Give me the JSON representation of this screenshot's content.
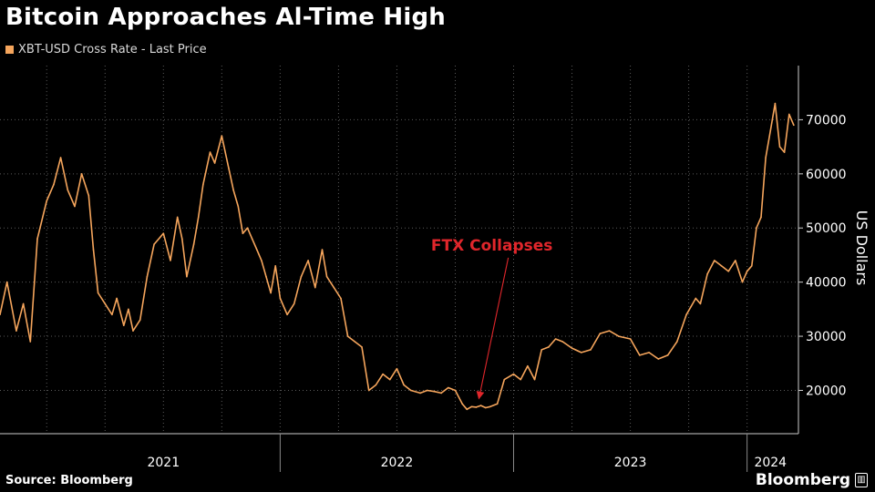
{
  "header": {
    "title": "Bitcoin Approaches Al-Time High",
    "legend_label": "XBT-USD Cross Rate - Last Price"
  },
  "footer": {
    "source": "Source: Bloomberg",
    "brand": "Bloomberg",
    "brand_icon": "bloomberg-logo-icon"
  },
  "colors": {
    "background": "#000000",
    "series": "#f5a55c",
    "annotation": "#e0262b",
    "grid": "#5a5a5a"
  },
  "chart_data": {
    "type": "line",
    "title": "Bitcoin Approaches Al-Time High",
    "xlabel": "",
    "ylabel": "US Dollars",
    "ylim": [
      12000,
      80000
    ],
    "xlim": [
      2020.8,
      2024.22
    ],
    "yticks": [
      20000,
      30000,
      40000,
      50000,
      60000,
      70000
    ],
    "ytick_labels": [
      "20000",
      "30000",
      "40000",
      "50000",
      "60000",
      "70000"
    ],
    "xticks": [
      {
        "label": "2021",
        "x": 2021.5
      },
      {
        "label": "2022",
        "x": 2022.5
      },
      {
        "label": "2023",
        "x": 2023.5
      },
      {
        "label": "2024",
        "x": 2024.1
      }
    ],
    "year_boundaries": [
      2022.0,
      2023.0,
      2024.0
    ],
    "grid": true,
    "legend": "top-left",
    "series": [
      {
        "name": "XBT-USD Cross Rate - Last Price",
        "x": [
          2020.8,
          2020.83,
          2020.87,
          2020.9,
          2020.93,
          2020.96,
          2021.0,
          2021.03,
          2021.06,
          2021.09,
          2021.12,
          2021.15,
          2021.18,
          2021.2,
          2021.22,
          2021.25,
          2021.28,
          2021.3,
          2021.33,
          2021.35,
          2021.37,
          2021.4,
          2021.43,
          2021.46,
          2021.5,
          2021.53,
          2021.56,
          2021.58,
          2021.6,
          2021.63,
          2021.65,
          2021.67,
          2021.7,
          2021.72,
          2021.75,
          2021.78,
          2021.8,
          2021.82,
          2021.84,
          2021.86,
          2021.88,
          2021.9,
          2021.92,
          2021.94,
          2021.96,
          2021.98,
          2022.0,
          2022.03,
          2022.06,
          2022.09,
          2022.12,
          2022.15,
          2022.18,
          2022.2,
          2022.23,
          2022.26,
          2022.29,
          2022.32,
          2022.35,
          2022.38,
          2022.41,
          2022.44,
          2022.47,
          2022.5,
          2022.53,
          2022.56,
          2022.6,
          2022.63,
          2022.66,
          2022.69,
          2022.72,
          2022.75,
          2022.78,
          2022.8,
          2022.82,
          2022.84,
          2022.86,
          2022.88,
          2022.9,
          2022.93,
          2022.96,
          2023.0,
          2023.03,
          2023.06,
          2023.09,
          2023.12,
          2023.15,
          2023.18,
          2023.21,
          2023.25,
          2023.29,
          2023.33,
          2023.37,
          2023.41,
          2023.45,
          2023.5,
          2023.54,
          2023.58,
          2023.62,
          2023.66,
          2023.7,
          2023.74,
          2023.78,
          2023.8,
          2023.83,
          2023.86,
          2023.89,
          2023.92,
          2023.95,
          2023.98,
          2024.0,
          2024.02,
          2024.04,
          2024.06,
          2024.08,
          2024.1,
          2024.12,
          2024.14,
          2024.16,
          2024.18,
          2024.2
        ],
        "values": [
          34000,
          40000,
          31000,
          36000,
          29000,
          48000,
          55000,
          58000,
          63000,
          57000,
          54000,
          60000,
          56000,
          46000,
          38000,
          36000,
          34000,
          37000,
          32000,
          35000,
          31000,
          33000,
          41000,
          47000,
          49000,
          44000,
          52000,
          48000,
          41000,
          47000,
          52000,
          58000,
          64000,
          62000,
          67000,
          61000,
          57000,
          54000,
          49000,
          50000,
          48000,
          46000,
          44000,
          41000,
          38000,
          43000,
          37000,
          34000,
          36000,
          41000,
          44000,
          39000,
          46000,
          41000,
          39000,
          37000,
          30000,
          29000,
          28000,
          20000,
          21000,
          23000,
          22000,
          24000,
          21000,
          20000,
          19500,
          20000,
          19800,
          19500,
          20500,
          20000,
          17500,
          16500,
          17000,
          16900,
          17200,
          16800,
          17000,
          17500,
          22000,
          23000,
          22000,
          24500,
          22000,
          27500,
          28000,
          29500,
          29000,
          27800,
          27000,
          27500,
          30500,
          31000,
          30000,
          29500,
          26500,
          27000,
          25800,
          26500,
          29000,
          34000,
          37000,
          36000,
          41500,
          44000,
          43000,
          42000,
          44000,
          40000,
          42000,
          43000,
          50000,
          52000,
          63000,
          68000,
          73000,
          65000,
          64000,
          71000,
          69000
        ]
      }
    ],
    "annotations": [
      {
        "text": "FTX Collapses",
        "x": 2022.86,
        "y": 43500,
        "arrow_to_x": 2022.86,
        "arrow_to_y": 18000
      }
    ]
  }
}
